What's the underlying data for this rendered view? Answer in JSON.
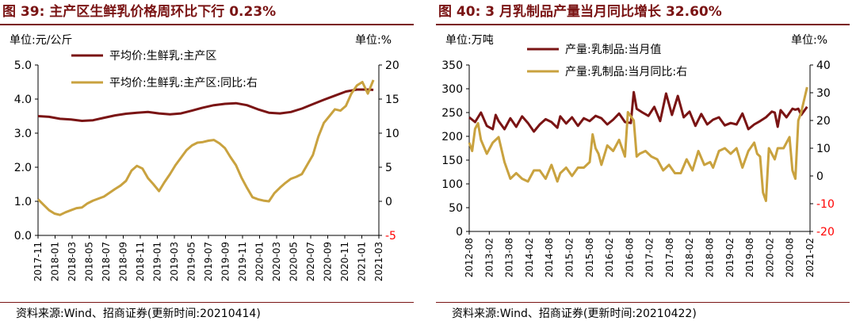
{
  "colors": {
    "primary": "#7a1414",
    "secondary": "#c9a23f",
    "negative": "#ff0000"
  },
  "charts": [
    {
      "title": "图 39:  主产区生鲜乳价格周环比下行 0.23%",
      "unit_left": "单位:元/公斤",
      "unit_right": "单位:%",
      "source": "资料来源:Wind、招商证券(更新时间:20210414)",
      "chart_data": {
        "type": "line",
        "ylim_left": [
          0,
          5
        ],
        "yticks_left": [
          "0.0",
          "1.0",
          "2.0",
          "3.0",
          "4.0",
          "5.0"
        ],
        "ylim_right": [
          -5,
          20
        ],
        "yticks_right": [
          "-5",
          "0",
          "5",
          "10",
          "15",
          "20"
        ],
        "x_range": [
          "2017-11",
          "2021-04"
        ],
        "x_ticks": [
          "2017-11",
          "2018-01",
          "2018-03",
          "2018-05",
          "2018-07",
          "2018-09",
          "2018-11",
          "2019-01",
          "2019-03",
          "2019-05",
          "2019-07",
          "2019-09",
          "2019-11",
          "2020-01",
          "2020-03",
          "2020-05",
          "2020-07",
          "2020-09",
          "2020-11",
          "2021-01",
          "2021-03"
        ],
        "series": [
          {
            "name": "平均价:生鲜乳:主产区",
            "axis": "left",
            "points": [
              [
                0,
                3.5
              ],
              [
                2,
                3.48
              ],
              [
                4,
                3.42
              ],
              [
                6,
                3.4
              ],
              [
                8,
                3.36
              ],
              [
                10,
                3.38
              ],
              [
                12,
                3.45
              ],
              [
                14,
                3.52
              ],
              [
                16,
                3.57
              ],
              [
                18,
                3.6
              ],
              [
                20,
                3.62
              ],
              [
                22,
                3.58
              ],
              [
                24,
                3.55
              ],
              [
                26,
                3.58
              ],
              [
                28,
                3.66
              ],
              [
                30,
                3.75
              ],
              [
                32,
                3.82
              ],
              [
                34,
                3.86
              ],
              [
                36,
                3.88
              ],
              [
                38,
                3.82
              ],
              [
                40,
                3.7
              ],
              [
                42,
                3.6
              ],
              [
                44,
                3.58
              ],
              [
                46,
                3.62
              ],
              [
                48,
                3.72
              ],
              [
                50,
                3.85
              ],
              [
                52,
                3.98
              ],
              [
                54,
                4.1
              ],
              [
                56,
                4.22
              ],
              [
                58,
                4.28
              ],
              [
                60,
                4.28
              ],
              [
                61,
                4.27
              ]
            ]
          },
          {
            "name": "平均价:生鲜乳:主产区:同比:右",
            "axis": "right",
            "points": [
              [
                0,
                0.3
              ],
              [
                1,
                -0.5
              ],
              [
                2,
                -1.3
              ],
              [
                3,
                -1.8
              ],
              [
                4,
                -2.0
              ],
              [
                5,
                -1.6
              ],
              [
                6,
                -1.3
              ],
              [
                7,
                -1.0
              ],
              [
                8,
                -0.9
              ],
              [
                9,
                -0.3
              ],
              [
                10,
                0.1
              ],
              [
                12,
                0.7
              ],
              [
                14,
                1.8
              ],
              [
                15,
                2.3
              ],
              [
                16,
                3.0
              ],
              [
                17,
                4.5
              ],
              [
                18,
                5.2
              ],
              [
                19,
                4.8
              ],
              [
                20,
                3.4
              ],
              [
                21,
                2.5
              ],
              [
                22,
                1.5
              ],
              [
                23,
                2.8
              ],
              [
                24,
                4.0
              ],
              [
                25,
                5.3
              ],
              [
                26,
                6.4
              ],
              [
                27,
                7.5
              ],
              [
                28,
                8.2
              ],
              [
                29,
                8.6
              ],
              [
                30,
                8.7
              ],
              [
                31,
                8.9
              ],
              [
                32,
                9.0
              ],
              [
                33,
                8.5
              ],
              [
                34,
                7.8
              ],
              [
                35,
                6.5
              ],
              [
                36,
                5.3
              ],
              [
                37,
                3.5
              ],
              [
                38,
                2.0
              ],
              [
                39,
                0.6
              ],
              [
                40,
                0.3
              ],
              [
                41,
                0.1
              ],
              [
                42,
                0.0
              ],
              [
                43,
                1.2
              ],
              [
                44,
                2.0
              ],
              [
                45,
                2.7
              ],
              [
                46,
                3.3
              ],
              [
                47,
                3.6
              ],
              [
                48,
                4.0
              ],
              [
                49,
                5.4
              ],
              [
                50,
                6.8
              ],
              [
                51,
                9.5
              ],
              [
                52,
                11.5
              ],
              [
                53,
                12.5
              ],
              [
                54,
                13.5
              ],
              [
                55,
                13.3
              ],
              [
                56,
                14.0
              ],
              [
                57,
                15.8
              ],
              [
                58,
                17.0
              ],
              [
                59,
                17.5
              ],
              [
                60,
                15.8
              ],
              [
                61,
                17.8
              ]
            ]
          }
        ]
      }
    },
    {
      "title": "图 40:  3 月乳制品产量当月同比增长 32.60%",
      "unit_left": "单位:万吨",
      "unit_right": "单位:%",
      "source": "资料来源:Wind、招商证券(更新时间:20210422)",
      "chart_data": {
        "type": "line",
        "ylim_left": [
          0,
          350
        ],
        "yticks_left": [
          "0",
          "50",
          "100",
          "150",
          "200",
          "250",
          "300",
          "350"
        ],
        "ylim_right": [
          -20,
          40
        ],
        "yticks_right": [
          "-20",
          "-10",
          "0",
          "10",
          "20",
          "30",
          "40"
        ],
        "x_range": [
          "2012-08",
          "2021-03"
        ],
        "x_ticks": [
          "2012-08",
          "2013-02",
          "2013-08",
          "2014-02",
          "2014-08",
          "2015-02",
          "2015-08",
          "2016-02",
          "2016-08",
          "2017-02",
          "2017-08",
          "2018-02",
          "2018-08",
          "2019-02",
          "2019-08",
          "2020-02",
          "2020-08",
          "2021-02"
        ],
        "series": [
          {
            "name": "产量:乳制品:当月值",
            "axis": "left",
            "points": [
              [
                0,
                240
              ],
              [
                2,
                230
              ],
              [
                4,
                250
              ],
              [
                6,
                222
              ],
              [
                8,
                215
              ],
              [
                9,
                245
              ],
              [
                10,
                232
              ],
              [
                12,
                215
              ],
              [
                14,
                238
              ],
              [
                16,
                220
              ],
              [
                18,
                242
              ],
              [
                20,
                228
              ],
              [
                22,
                210
              ],
              [
                24,
                225
              ],
              [
                26,
                236
              ],
              [
                28,
                230
              ],
              [
                30,
                218
              ],
              [
                31,
                242
              ],
              [
                33,
                227
              ],
              [
                35,
                240
              ],
              [
                37,
                222
              ],
              [
                39,
                238
              ],
              [
                41,
                232
              ],
              [
                43,
                243
              ],
              [
                45,
                238
              ],
              [
                47,
                225
              ],
              [
                49,
                235
              ],
              [
                51,
                248
              ],
              [
                53,
                230
              ],
              [
                55,
                228
              ],
              [
                56,
                293
              ],
              [
                57,
                258
              ],
              [
                59,
                250
              ],
              [
                61,
                243
              ],
              [
                63,
                262
              ],
              [
                65,
                232
              ],
              [
                67,
                290
              ],
              [
                69,
                245
              ],
              [
                71,
                285
              ],
              [
                73,
                240
              ],
              [
                75,
                252
              ],
              [
                77,
                222
              ],
              [
                79,
                247
              ],
              [
                81,
                225
              ],
              [
                83,
                235
              ],
              [
                85,
                240
              ],
              [
                87,
                223
              ],
              [
                89,
                228
              ],
              [
                91,
                225
              ],
              [
                93,
                248
              ],
              [
                95,
                215
              ],
              [
                97,
                225
              ],
              [
                99,
                232
              ],
              [
                101,
                240
              ],
              [
                103,
                252
              ],
              [
                104,
                250
              ],
              [
                105,
                220
              ],
              [
                106,
                255
              ],
              [
                108,
                240
              ],
              [
                110,
                258
              ],
              [
                111,
                256
              ],
              [
                112,
                258
              ],
              [
                113,
                245
              ],
              [
                115,
                262
              ]
            ]
          },
          {
            "name": "产量:乳制品:当月同比:右",
            "axis": "right",
            "points": [
              [
                0,
                12
              ],
              [
                1,
                9
              ],
              [
                2,
                17
              ],
              [
                3,
                19
              ],
              [
                4,
                13
              ],
              [
                6,
                8
              ],
              [
                8,
                12
              ],
              [
                10,
                14
              ],
              [
                12,
                5
              ],
              [
                13,
                2
              ],
              [
                14,
                -1
              ],
              [
                16,
                1
              ],
              [
                18,
                -1
              ],
              [
                20,
                -2
              ],
              [
                22,
                2
              ],
              [
                24,
                2
              ],
              [
                26,
                -1
              ],
              [
                28,
                4
              ],
              [
                30,
                -2
              ],
              [
                31,
                1
              ],
              [
                33,
                3
              ],
              [
                35,
                0
              ],
              [
                37,
                3
              ],
              [
                39,
                3
              ],
              [
                41,
                5
              ],
              [
                42,
                15
              ],
              [
                43,
                10
              ],
              [
                44,
                8
              ],
              [
                45,
                4
              ],
              [
                47,
                11
              ],
              [
                49,
                9
              ],
              [
                51,
                13
              ],
              [
                53,
                7
              ],
              [
                54,
                23
              ],
              [
                56,
                20
              ],
              [
                57,
                7
              ],
              [
                58,
                8
              ],
              [
                60,
                9
              ],
              [
                62,
                7
              ],
              [
                64,
                6
              ],
              [
                66,
                2
              ],
              [
                68,
                4
              ],
              [
                70,
                1
              ],
              [
                72,
                1
              ],
              [
                74,
                6
              ],
              [
                76,
                2
              ],
              [
                78,
                9
              ],
              [
                80,
                4
              ],
              [
                82,
                5
              ],
              [
                83,
                3
              ],
              [
                85,
                9
              ],
              [
                87,
                10
              ],
              [
                89,
                8
              ],
              [
                91,
                10
              ],
              [
                93,
                3
              ],
              [
                95,
                9
              ],
              [
                97,
                12
              ],
              [
                98,
                8
              ],
              [
                99,
                7
              ],
              [
                100,
                -6
              ],
              [
                101,
                -9
              ],
              [
                102,
                10
              ],
              [
                104,
                6
              ],
              [
                105,
                10
              ],
              [
                107,
                10
              ],
              [
                109,
                14
              ],
              [
                110,
                2
              ],
              [
                111,
                -1
              ],
              [
                112,
                20
              ],
              [
                113,
                23
              ],
              [
                115,
                32
              ]
            ]
          }
        ]
      }
    }
  ]
}
